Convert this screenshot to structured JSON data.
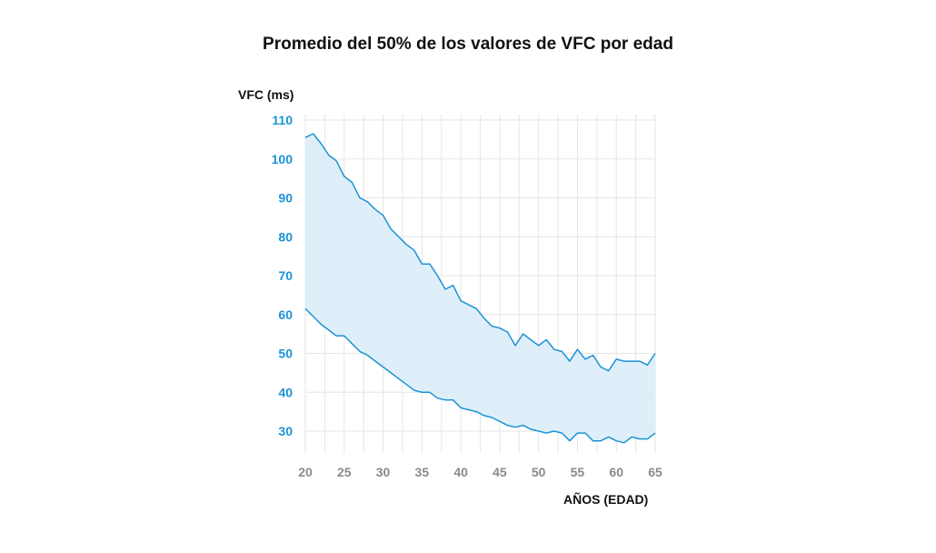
{
  "chart_data": {
    "type": "area",
    "title": "Promedio del 50% de los valores de VFC por edad",
    "xlabel": "AÑOS (EDAD)",
    "ylabel": "VFC (ms)",
    "xlim": [
      20,
      65
    ],
    "ylim": [
      27,
      110
    ],
    "x_ticks": [
      "20",
      "25",
      "30",
      "35",
      "40",
      "45",
      "50",
      "55",
      "60",
      "65"
    ],
    "y_ticks": [
      "30",
      "40",
      "50",
      "60",
      "70",
      "80",
      "90",
      "100",
      "110"
    ],
    "grid": true,
    "colors": {
      "line": "#1c93d6",
      "fill": "#d8ecf8",
      "grid": "#e6e6e6",
      "ytick": "#1c93d6",
      "xtick": "#8a8a8a"
    },
    "x": [
      20,
      21,
      22,
      23,
      24,
      25,
      26,
      27,
      28,
      29,
      30,
      31,
      32,
      33,
      34,
      35,
      36,
      37,
      38,
      39,
      40,
      41,
      42,
      43,
      44,
      45,
      46,
      47,
      48,
      49,
      50,
      51,
      52,
      53,
      54,
      55,
      56,
      57,
      58,
      59,
      60,
      61,
      62,
      63,
      64,
      65
    ],
    "series": [
      {
        "name": "upper",
        "values": [
          105.5,
          106.5,
          104,
          101,
          99.5,
          95.5,
          94,
          90,
          89,
          87,
          85.5,
          82,
          80,
          78,
          76.5,
          73,
          73,
          70,
          66.5,
          67.5,
          63.5,
          62.5,
          61.5,
          59,
          57,
          56.5,
          55.5,
          52,
          55,
          53.5,
          52,
          53.5,
          51,
          50.5,
          48,
          51,
          48.5,
          49.5,
          46.5,
          45.5,
          48.5,
          48,
          48,
          48,
          47,
          50
        ]
      },
      {
        "name": "lower",
        "values": [
          61.5,
          59.5,
          57.5,
          56,
          54.5,
          54.5,
          52.5,
          50.5,
          49.5,
          48,
          46.5,
          45,
          43.5,
          42,
          40.5,
          40,
          40,
          38.5,
          38,
          38,
          36,
          35.5,
          35,
          34,
          33.5,
          32.5,
          31.5,
          31,
          31.5,
          30.5,
          30,
          29.5,
          30,
          29.5,
          27.5,
          29.5,
          29.5,
          27.5,
          27.5,
          28.5,
          27.5,
          27,
          28.5,
          28,
          28,
          29.5
        ]
      }
    ]
  }
}
